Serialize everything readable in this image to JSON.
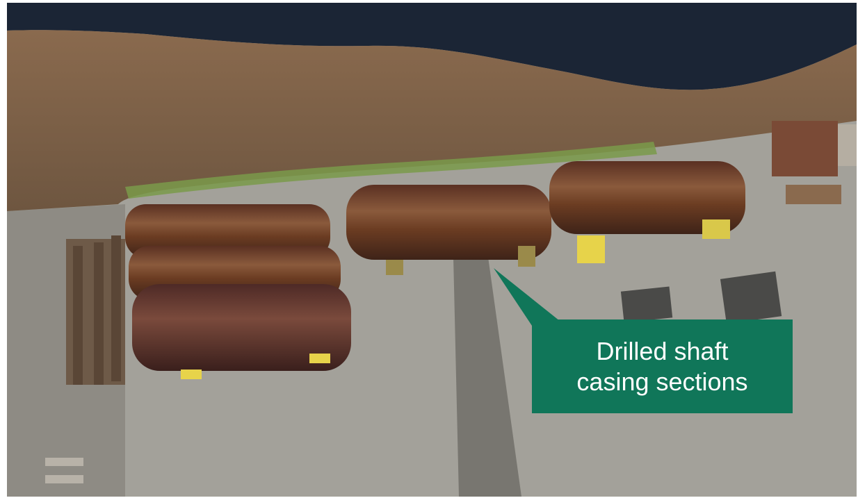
{
  "photo": {
    "subject": "aerial-photo",
    "colors": {
      "callout_bg": "#107659",
      "callout_text": "#ffffff",
      "water": "#1b2535",
      "ground": "#9a9890",
      "casing_rust": "#6b3c22"
    }
  },
  "callout": {
    "text": "Drilled shaft\ncasing sections"
  }
}
